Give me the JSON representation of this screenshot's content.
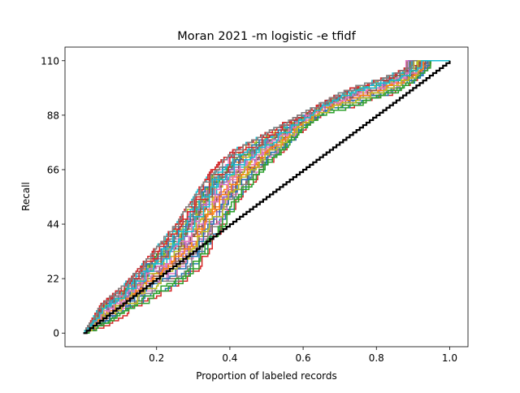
{
  "chart_data": {
    "type": "line",
    "title": "Moran 2021 -m logistic -e tfidf",
    "xlabel": "Proportion of labeled records",
    "ylabel": "Recall",
    "xlim": [
      -0.05,
      1.05
    ],
    "ylim": [
      -5.5,
      115.5
    ],
    "xticks": [
      0.2,
      0.4,
      0.6,
      0.8,
      1.0
    ],
    "xtick_labels": [
      "0.2",
      "0.4",
      "0.6",
      "0.8",
      "1.0"
    ],
    "yticks": [
      0,
      22,
      44,
      66,
      88,
      110
    ],
    "ytick_labels": [
      "0",
      "22",
      "44",
      "66",
      "88",
      "110"
    ],
    "grid": false,
    "legend": "none",
    "colors": [
      "#1f77b4",
      "#ff7f0e",
      "#2ca02c",
      "#d62728",
      "#9467bd",
      "#8c564b",
      "#e377c2",
      "#7f7f7f",
      "#bcbd22",
      "#17becf"
    ],
    "reference_line": {
      "color": "#000000",
      "x": [
        0.0,
        1.0
      ],
      "y": [
        0,
        110
      ]
    },
    "simulation_runs": 40,
    "envelope": {
      "x": [
        0.0,
        0.05,
        0.1,
        0.15,
        0.2,
        0.25,
        0.3,
        0.35,
        0.4,
        0.45,
        0.5,
        0.55,
        0.6,
        0.65,
        0.7,
        0.75,
        0.8,
        0.85,
        0.9,
        0.95,
        1.0
      ],
      "upper": [
        0,
        12,
        18,
        26,
        35,
        44,
        55,
        66,
        73,
        77,
        81,
        85,
        89,
        93,
        97,
        100,
        102,
        105,
        108,
        110,
        110
      ],
      "lower": [
        0,
        2,
        6,
        10,
        13,
        16,
        22,
        35,
        47,
        58,
        67,
        74,
        82,
        88,
        90,
        92,
        94,
        97,
        101,
        108,
        110
      ]
    }
  }
}
